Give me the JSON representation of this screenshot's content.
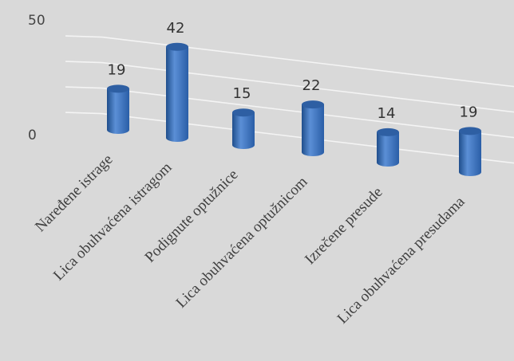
{
  "chart_data": {
    "type": "bar",
    "style": "3d-cylinder",
    "categories": [
      "Naređene istrage",
      "Lica obuhvaćena istragom",
      "Podignute optužnice",
      "Lica obuhvaćena optužnicom",
      "Izrečene presude",
      "Lica obuhvaćena presudama"
    ],
    "values": [
      19,
      42,
      15,
      22,
      14,
      19
    ],
    "data_labels": [
      "19",
      "42",
      "15",
      "22",
      "14",
      "19"
    ],
    "ytick_labels": [
      "0",
      "50"
    ],
    "ylim": [
      0,
      50
    ],
    "grid": true,
    "legend": "none",
    "colors": {
      "bar": "#4a7fc6",
      "bar_dark": "#1f4e8c",
      "top": "#2e5fa3",
      "grid": "#f4f4f4",
      "background": "#d9d9d9"
    }
  }
}
